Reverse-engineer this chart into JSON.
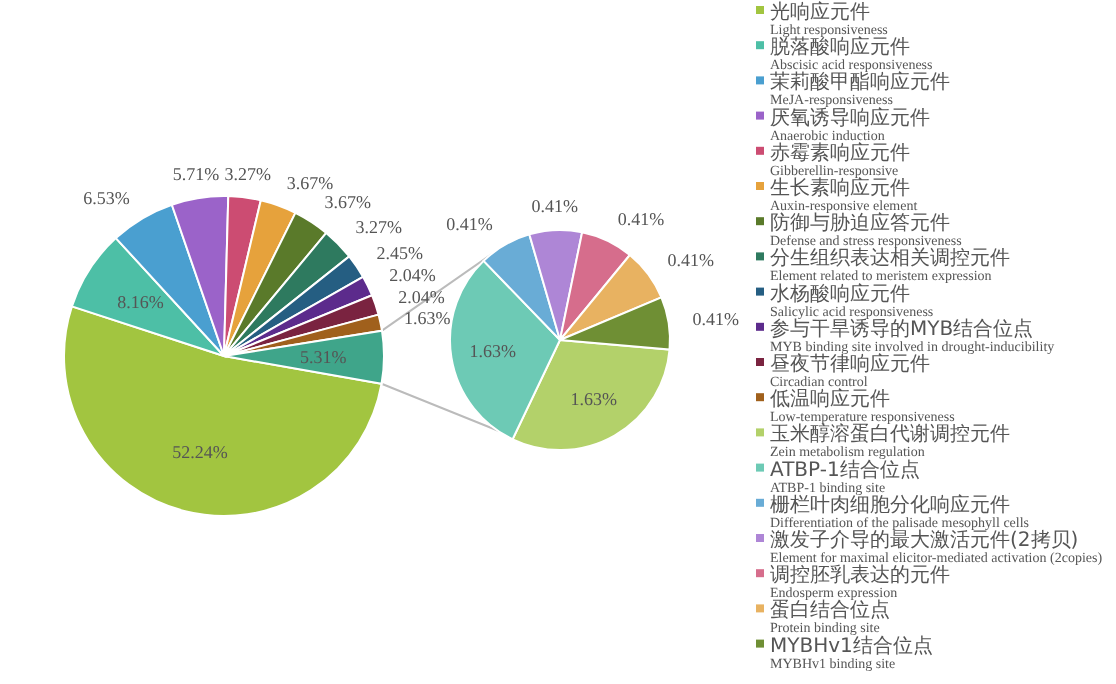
{
  "chart_data": [
    {
      "type": "pie",
      "legend": "right",
      "categories": [
        "光响应元件\nLight responsiveness",
        "脱落酸响应元件\nAbscisic acid responsiveness",
        "茉莉酸甲酯响应元件\nMeJA-responsiveness",
        "厌氧诱导响应元件\nAnaerobic induction",
        "赤霉素响应元件\nGibberellin-responsive",
        "生长素响应元件\nAuxin-responsive element",
        "防御与胁迫应答元件\nDefense and stress responsiveness",
        "分生组织表达相关调控元件\nElement related to meristem expression",
        "水杨酸响应元件\nSalicylic acid responsiveness",
        "参与干旱诱导的MYB结合位点\nMYB binding site involved in drought-inducibility",
        "昼夜节律响应元件\nCircadian control",
        "低温响应元件\nLow-temperature responsiveness",
        null
      ],
      "values": [
        52.24,
        8.16,
        6.53,
        5.71,
        3.27,
        3.67,
        3.67,
        3.27,
        2.45,
        2.04,
        2.04,
        1.63,
        5.31
      ],
      "value_labels": [
        "52.24%",
        "8.16%",
        "6.53%",
        "5.71%",
        "3.27%",
        "3.67%",
        "3.67%",
        "3.27%",
        "2.45%",
        "2.04%",
        "2.04%",
        "1.63%",
        "5.31%"
      ],
      "colors": [
        "#a2c540",
        "#4dbfa6",
        "#4a9fd0",
        "#9b63c9",
        "#cc4c72",
        "#e6a23c",
        "#5a7a2a",
        "#2e7a5f",
        "#255e82",
        "#5c2b8c",
        "#7a2340",
        "#a0601c",
        "#3fa58a"
      ]
    },
    {
      "type": "pie",
      "legend": "right",
      "categories": [
        "玉米醇溶蛋白代谢调控元件\nZein metabolism regulation",
        "ATBP-1结合位点\nATBP-1 binding site",
        "栅栏叶肉细胞分化响应元件\nDifferentiation of the palisade mesophyll cells",
        "激发子介导的最大激活元件(2拷贝)\nElement for maximal elicitor-mediated activation (2copies)",
        "调控胚乳表达的元件\nEndosperm expression",
        "蛋白结合位点\nProtein binding site",
        "MYBHv1结合位点\nMYBHv1 binding site"
      ],
      "values": [
        1.63,
        1.63,
        0.41,
        0.41,
        0.41,
        0.41,
        0.41
      ],
      "value_labels": [
        "1.63%",
        "1.63%",
        "0.41%",
        "0.41%",
        "0.41%",
        "0.41%",
        "0.41%"
      ],
      "colors": [
        "#b3d16a",
        "#6dcab5",
        "#69acd6",
        "#ae86d6",
        "#d66d8c",
        "#e8b261",
        "#6f8f34"
      ]
    }
  ]
}
